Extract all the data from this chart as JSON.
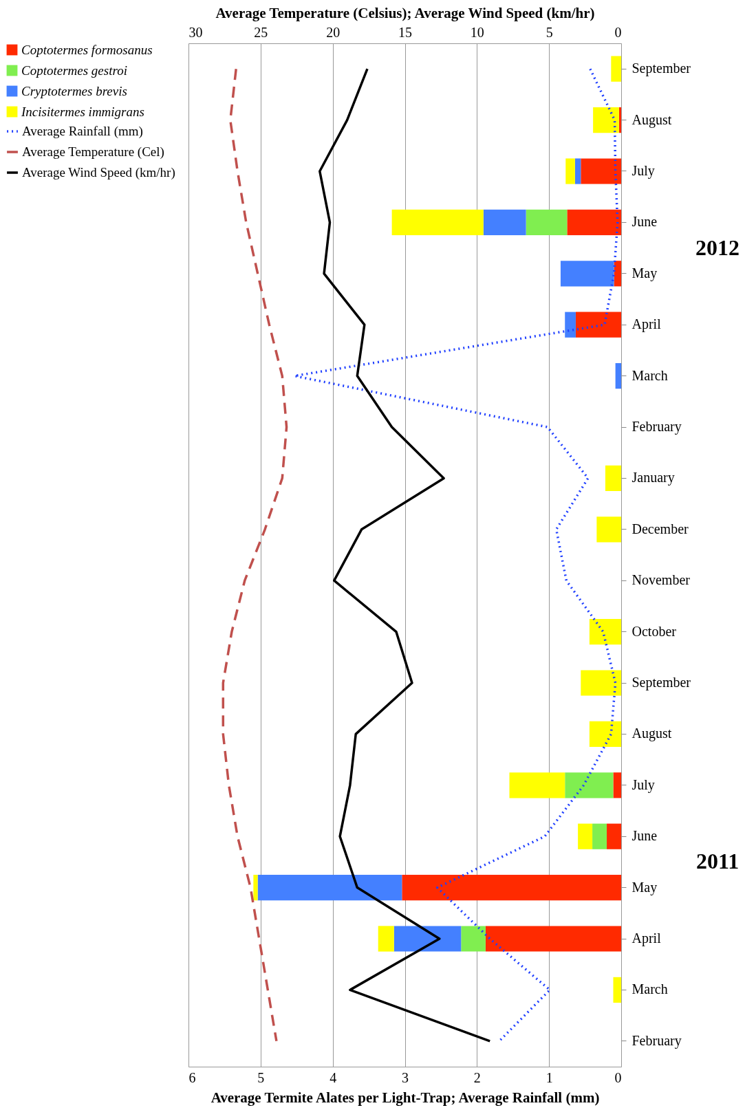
{
  "chart_data": {
    "type": "bar",
    "orientation": "horizontal",
    "stacked": true,
    "xlabel": "Average Termite Alates per Light-Trap; Average Rainfall (mm)",
    "x2label": "Average Temperature (Celsius); Average Wind Speed (km/hr)",
    "categories": [
      "September",
      "August",
      "July",
      "June",
      "May",
      "April",
      "March",
      "February",
      "January",
      "December",
      "November",
      "October",
      "September",
      "August",
      "July",
      "June",
      "May",
      "April",
      "March",
      "February"
    ],
    "xlim": [
      6,
      0
    ],
    "xticks": [
      6,
      5,
      4,
      3,
      2,
      1,
      0
    ],
    "x2lim": [
      30,
      0
    ],
    "x2ticks": [
      30,
      25,
      20,
      15,
      10,
      5,
      0
    ],
    "grid": "x",
    "legend": "left",
    "annotations": [
      "2012",
      "2011"
    ],
    "series": [
      {
        "name": "Coptotermes formosanus",
        "color": "#ff2a00",
        "values": [
          null,
          0.03,
          0.56,
          0.75,
          0.1,
          0.63,
          null,
          null,
          null,
          null,
          null,
          null,
          null,
          null,
          0.11,
          0.2,
          3.04,
          1.88,
          null,
          null
        ]
      },
      {
        "name": "Coptotermes gestroi",
        "color": "#80ee50",
        "values": [
          null,
          null,
          null,
          0.57,
          null,
          null,
          null,
          null,
          null,
          null,
          null,
          null,
          null,
          null,
          0.67,
          0.2,
          null,
          0.34,
          null,
          null
        ]
      },
      {
        "name": "Cryptotermes brevis",
        "color": "#4480ff",
        "values": [
          null,
          null,
          0.08,
          0.59,
          0.74,
          0.15,
          0.08,
          null,
          null,
          null,
          null,
          null,
          null,
          null,
          null,
          null,
          2.0,
          0.93,
          null,
          null
        ]
      },
      {
        "name": "Incisitermes immigrans",
        "color": "#ffff00",
        "values": [
          0.14,
          0.36,
          0.13,
          1.27,
          null,
          null,
          null,
          null,
          0.22,
          0.34,
          null,
          0.44,
          0.56,
          0.44,
          0.77,
          0.2,
          0.06,
          0.22,
          0.11,
          null
        ]
      },
      {
        "name": "Average Rainfall (mm)",
        "type": "line",
        "line_style": "dotted",
        "color": "#1f3fff",
        "values": [
          0.43,
          0.09,
          0.08,
          0.05,
          0.1,
          0.23,
          4.53,
          1.02,
          0.46,
          0.9,
          0.76,
          0.25,
          0.08,
          0.14,
          0.52,
          1.06,
          2.55,
          1.82,
          0.99,
          1.69
        ]
      },
      {
        "name": "Average Temperature (Cel)",
        "type": "line",
        "axis": "x2",
        "line_style": "dashed",
        "color": "#c0504d",
        "values": [
          26.7,
          27.1,
          26.6,
          26.0,
          25.2,
          24.4,
          23.5,
          23.2,
          23.5,
          24.7,
          26.1,
          27.0,
          27.6,
          27.6,
          27.2,
          26.6,
          25.7,
          25.1,
          24.5,
          23.9
        ]
      },
      {
        "name": "Average Wind Speed (km/hr)",
        "type": "line",
        "axis": "x2",
        "line_style": "solid",
        "color": "#000000",
        "values": [
          17.6,
          19.0,
          20.9,
          20.2,
          20.6,
          17.8,
          18.3,
          15.9,
          12.3,
          18.0,
          19.9,
          15.6,
          14.5,
          18.4,
          18.8,
          19.5,
          18.3,
          12.6,
          18.8,
          9.1
        ]
      }
    ]
  }
}
